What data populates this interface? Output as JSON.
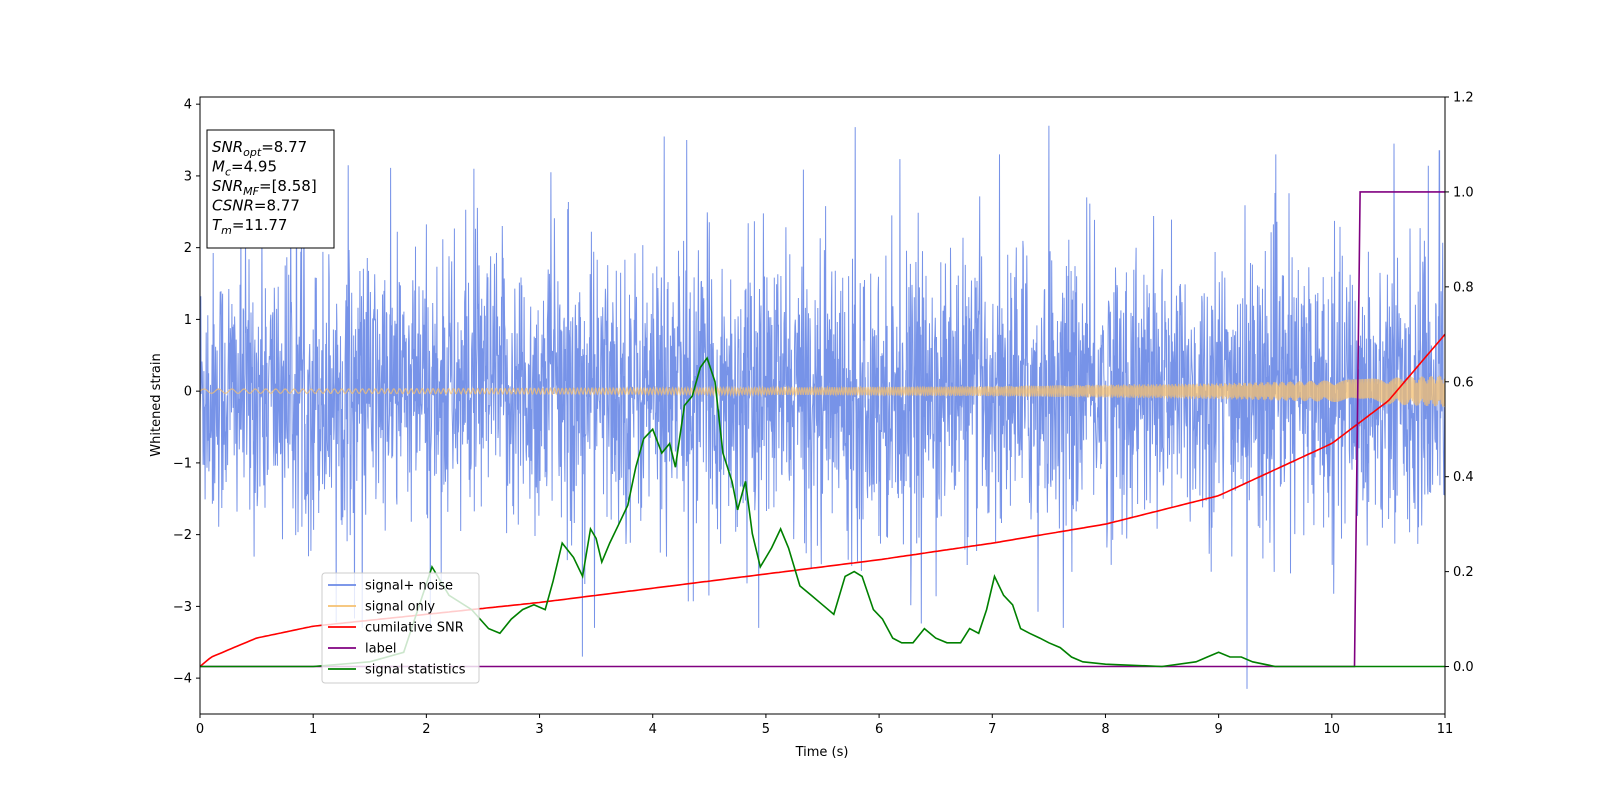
{
  "chart_data": {
    "type": "line",
    "title": "",
    "xlabel": "Time (s)",
    "ylabel": "Whitened strain",
    "xlim": [
      0,
      11
    ],
    "ylim_left": [
      -4.5,
      4.1
    ],
    "ylim_right": [
      -0.1,
      1.2
    ],
    "x_ticks": [
      "0",
      "1",
      "2",
      "3",
      "4",
      "5",
      "6",
      "7",
      "8",
      "9",
      "10",
      "11"
    ],
    "y_ticks_left": [
      "−4",
      "−3",
      "−2",
      "−1",
      "0",
      "1",
      "2",
      "3",
      "4"
    ],
    "y_ticks_right": [
      "0.0",
      "0.2",
      "0.4",
      "0.6",
      "0.8",
      "1.0",
      "1.2"
    ],
    "grid": false,
    "legend_placement": "lower-left",
    "annotation": {
      "placement": "upper-left",
      "lines": [
        {
          "base": "SNR",
          "sub": "opt",
          "value": "=8.77"
        },
        {
          "base": "M",
          "sub": "c",
          "value": "=4.95"
        },
        {
          "base": "SNR",
          "sub": "MF",
          "value": "=[8.58]"
        },
        {
          "base": "CSNR",
          "sub": "",
          "value": "=8.77"
        },
        {
          "base": "T",
          "sub": "m",
          "value": "=11.77"
        }
      ]
    },
    "series": [
      {
        "name": "signal+ noise",
        "color": "#6b8ae6",
        "axis": "left",
        "noise_envelope_typical": 1.3,
        "peak_values": [
          {
            "x": 1.31,
            "y": 3.15
          },
          {
            "x": 2.42,
            "y": 3.1
          },
          {
            "x": 3.1,
            "y": 3.05
          },
          {
            "x": 4.1,
            "y": 3.55
          },
          {
            "x": 4.3,
            "y": 3.5
          },
          {
            "x": 5.79,
            "y": 3.68
          },
          {
            "x": 7.5,
            "y": 3.7
          },
          {
            "x": 9.25,
            "y": -4.15
          },
          {
            "x": 3.38,
            "y": -3.7
          },
          {
            "x": 10.55,
            "y": 3.45
          },
          {
            "x": 10.95,
            "y": 3.35
          }
        ]
      },
      {
        "name": "signal only",
        "color": "#f5c070",
        "axis": "left",
        "x": [
          0,
          1,
          2,
          3,
          4,
          5,
          6,
          7,
          8,
          9,
          10,
          11
        ],
        "amplitude": [
          0.03,
          0.03,
          0.035,
          0.04,
          0.045,
          0.05,
          0.06,
          0.07,
          0.09,
          0.11,
          0.15,
          0.22
        ]
      },
      {
        "name": "cumilative SNR",
        "color": "#ff0000",
        "axis": "right",
        "x": [
          0,
          0.1,
          0.5,
          1,
          2,
          3,
          4,
          5,
          6,
          7,
          8,
          9,
          10,
          10.5,
          11
        ],
        "y": [
          0.0,
          0.02,
          0.06,
          0.085,
          0.11,
          0.135,
          0.165,
          0.195,
          0.225,
          0.26,
          0.3,
          0.36,
          0.47,
          0.56,
          0.7
        ]
      },
      {
        "name": "label",
        "color": "#800080",
        "axis": "right",
        "x": [
          0,
          10.2,
          10.25,
          11
        ],
        "y": [
          0,
          0,
          1,
          1
        ]
      },
      {
        "name": "signal statistics",
        "color": "#008000",
        "axis": "right",
        "x": [
          0,
          0.5,
          1,
          1.5,
          1.8,
          2.05,
          2.2,
          2.4,
          2.55,
          2.65,
          2.75,
          2.85,
          2.95,
          3.05,
          3.12,
          3.2,
          3.3,
          3.38,
          3.45,
          3.5,
          3.55,
          3.62,
          3.7,
          3.78,
          3.85,
          3.92,
          4.0,
          4.08,
          4.15,
          4.2,
          4.28,
          4.35,
          4.42,
          4.48,
          4.55,
          4.62,
          4.7,
          4.75,
          4.82,
          4.88,
          4.95,
          5.05,
          5.13,
          5.2,
          5.3,
          5.4,
          5.5,
          5.6,
          5.7,
          5.78,
          5.85,
          5.95,
          6.03,
          6.12,
          6.2,
          6.3,
          6.4,
          6.5,
          6.6,
          6.72,
          6.8,
          6.88,
          6.95,
          7.02,
          7.1,
          7.18,
          7.25,
          7.33,
          7.42,
          7.5,
          7.6,
          7.7,
          7.8,
          8.0,
          8.5,
          8.8,
          8.9,
          9.0,
          9.1,
          9.2,
          9.3,
          9.5,
          10.0,
          10.2,
          10.5,
          11
        ],
        "y": [
          0.0,
          0.0,
          0.0,
          0.01,
          0.03,
          0.21,
          0.15,
          0.12,
          0.08,
          0.07,
          0.1,
          0.12,
          0.13,
          0.12,
          0.18,
          0.26,
          0.23,
          0.19,
          0.29,
          0.27,
          0.22,
          0.26,
          0.3,
          0.34,
          0.42,
          0.48,
          0.5,
          0.45,
          0.47,
          0.42,
          0.55,
          0.57,
          0.63,
          0.65,
          0.6,
          0.45,
          0.39,
          0.33,
          0.39,
          0.28,
          0.21,
          0.25,
          0.29,
          0.25,
          0.17,
          0.15,
          0.13,
          0.11,
          0.19,
          0.2,
          0.19,
          0.12,
          0.1,
          0.06,
          0.05,
          0.05,
          0.08,
          0.06,
          0.05,
          0.05,
          0.08,
          0.07,
          0.12,
          0.19,
          0.15,
          0.13,
          0.08,
          0.07,
          0.06,
          0.05,
          0.04,
          0.02,
          0.01,
          0.005,
          0.0,
          0.01,
          0.02,
          0.03,
          0.02,
          0.02,
          0.01,
          0.0,
          0.0,
          0.0,
          0.0,
          0.0
        ]
      }
    ]
  }
}
